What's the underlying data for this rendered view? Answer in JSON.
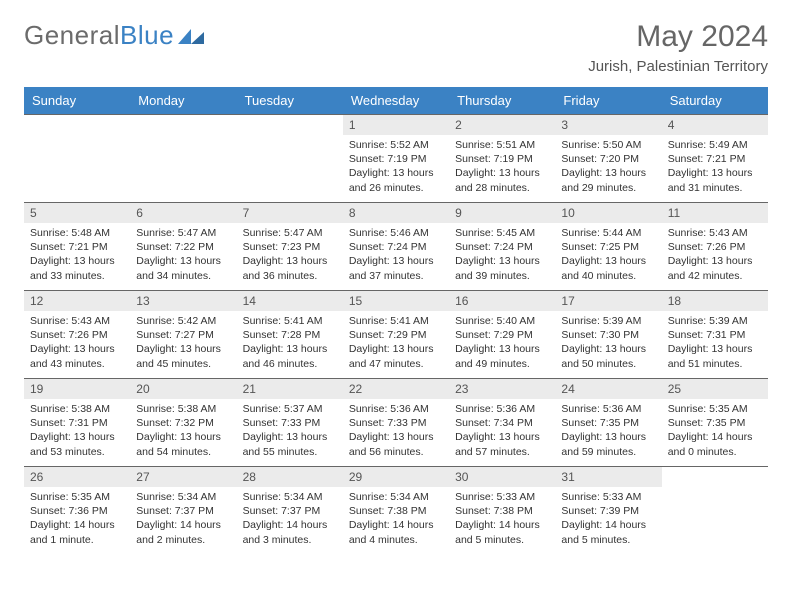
{
  "logo": {
    "general": "General",
    "blue": "Blue"
  },
  "title": "May 2024",
  "location": "Jurish, Palestinian Territory",
  "dayHeaders": [
    "Sunday",
    "Monday",
    "Tuesday",
    "Wednesday",
    "Thursday",
    "Friday",
    "Saturday"
  ],
  "header_bg": "#3b82c4",
  "header_fg": "#ffffff",
  "daynum_bg": "#ebebeb",
  "cell_border": "#666666",
  "text_color": "#333333",
  "fontsize_title": 30,
  "fontsize_location": 15,
  "fontsize_header": 13,
  "fontsize_daynum": 12,
  "fontsize_body": 10.5,
  "weeks": [
    [
      null,
      null,
      null,
      {
        "n": "1",
        "sr": "Sunrise: 5:52 AM",
        "ss": "Sunset: 7:19 PM",
        "dl": "Daylight: 13 hours and 26 minutes."
      },
      {
        "n": "2",
        "sr": "Sunrise: 5:51 AM",
        "ss": "Sunset: 7:19 PM",
        "dl": "Daylight: 13 hours and 28 minutes."
      },
      {
        "n": "3",
        "sr": "Sunrise: 5:50 AM",
        "ss": "Sunset: 7:20 PM",
        "dl": "Daylight: 13 hours and 29 minutes."
      },
      {
        "n": "4",
        "sr": "Sunrise: 5:49 AM",
        "ss": "Sunset: 7:21 PM",
        "dl": "Daylight: 13 hours and 31 minutes."
      }
    ],
    [
      {
        "n": "5",
        "sr": "Sunrise: 5:48 AM",
        "ss": "Sunset: 7:21 PM",
        "dl": "Daylight: 13 hours and 33 minutes."
      },
      {
        "n": "6",
        "sr": "Sunrise: 5:47 AM",
        "ss": "Sunset: 7:22 PM",
        "dl": "Daylight: 13 hours and 34 minutes."
      },
      {
        "n": "7",
        "sr": "Sunrise: 5:47 AM",
        "ss": "Sunset: 7:23 PM",
        "dl": "Daylight: 13 hours and 36 minutes."
      },
      {
        "n": "8",
        "sr": "Sunrise: 5:46 AM",
        "ss": "Sunset: 7:24 PM",
        "dl": "Daylight: 13 hours and 37 minutes."
      },
      {
        "n": "9",
        "sr": "Sunrise: 5:45 AM",
        "ss": "Sunset: 7:24 PM",
        "dl": "Daylight: 13 hours and 39 minutes."
      },
      {
        "n": "10",
        "sr": "Sunrise: 5:44 AM",
        "ss": "Sunset: 7:25 PM",
        "dl": "Daylight: 13 hours and 40 minutes."
      },
      {
        "n": "11",
        "sr": "Sunrise: 5:43 AM",
        "ss": "Sunset: 7:26 PM",
        "dl": "Daylight: 13 hours and 42 minutes."
      }
    ],
    [
      {
        "n": "12",
        "sr": "Sunrise: 5:43 AM",
        "ss": "Sunset: 7:26 PM",
        "dl": "Daylight: 13 hours and 43 minutes."
      },
      {
        "n": "13",
        "sr": "Sunrise: 5:42 AM",
        "ss": "Sunset: 7:27 PM",
        "dl": "Daylight: 13 hours and 45 minutes."
      },
      {
        "n": "14",
        "sr": "Sunrise: 5:41 AM",
        "ss": "Sunset: 7:28 PM",
        "dl": "Daylight: 13 hours and 46 minutes."
      },
      {
        "n": "15",
        "sr": "Sunrise: 5:41 AM",
        "ss": "Sunset: 7:29 PM",
        "dl": "Daylight: 13 hours and 47 minutes."
      },
      {
        "n": "16",
        "sr": "Sunrise: 5:40 AM",
        "ss": "Sunset: 7:29 PM",
        "dl": "Daylight: 13 hours and 49 minutes."
      },
      {
        "n": "17",
        "sr": "Sunrise: 5:39 AM",
        "ss": "Sunset: 7:30 PM",
        "dl": "Daylight: 13 hours and 50 minutes."
      },
      {
        "n": "18",
        "sr": "Sunrise: 5:39 AM",
        "ss": "Sunset: 7:31 PM",
        "dl": "Daylight: 13 hours and 51 minutes."
      }
    ],
    [
      {
        "n": "19",
        "sr": "Sunrise: 5:38 AM",
        "ss": "Sunset: 7:31 PM",
        "dl": "Daylight: 13 hours and 53 minutes."
      },
      {
        "n": "20",
        "sr": "Sunrise: 5:38 AM",
        "ss": "Sunset: 7:32 PM",
        "dl": "Daylight: 13 hours and 54 minutes."
      },
      {
        "n": "21",
        "sr": "Sunrise: 5:37 AM",
        "ss": "Sunset: 7:33 PM",
        "dl": "Daylight: 13 hours and 55 minutes."
      },
      {
        "n": "22",
        "sr": "Sunrise: 5:36 AM",
        "ss": "Sunset: 7:33 PM",
        "dl": "Daylight: 13 hours and 56 minutes."
      },
      {
        "n": "23",
        "sr": "Sunrise: 5:36 AM",
        "ss": "Sunset: 7:34 PM",
        "dl": "Daylight: 13 hours and 57 minutes."
      },
      {
        "n": "24",
        "sr": "Sunrise: 5:36 AM",
        "ss": "Sunset: 7:35 PM",
        "dl": "Daylight: 13 hours and 59 minutes."
      },
      {
        "n": "25",
        "sr": "Sunrise: 5:35 AM",
        "ss": "Sunset: 7:35 PM",
        "dl": "Daylight: 14 hours and 0 minutes."
      }
    ],
    [
      {
        "n": "26",
        "sr": "Sunrise: 5:35 AM",
        "ss": "Sunset: 7:36 PM",
        "dl": "Daylight: 14 hours and 1 minute."
      },
      {
        "n": "27",
        "sr": "Sunrise: 5:34 AM",
        "ss": "Sunset: 7:37 PM",
        "dl": "Daylight: 14 hours and 2 minutes."
      },
      {
        "n": "28",
        "sr": "Sunrise: 5:34 AM",
        "ss": "Sunset: 7:37 PM",
        "dl": "Daylight: 14 hours and 3 minutes."
      },
      {
        "n": "29",
        "sr": "Sunrise: 5:34 AM",
        "ss": "Sunset: 7:38 PM",
        "dl": "Daylight: 14 hours and 4 minutes."
      },
      {
        "n": "30",
        "sr": "Sunrise: 5:33 AM",
        "ss": "Sunset: 7:38 PM",
        "dl": "Daylight: 14 hours and 5 minutes."
      },
      {
        "n": "31",
        "sr": "Sunrise: 5:33 AM",
        "ss": "Sunset: 7:39 PM",
        "dl": "Daylight: 14 hours and 5 minutes."
      },
      null
    ]
  ]
}
